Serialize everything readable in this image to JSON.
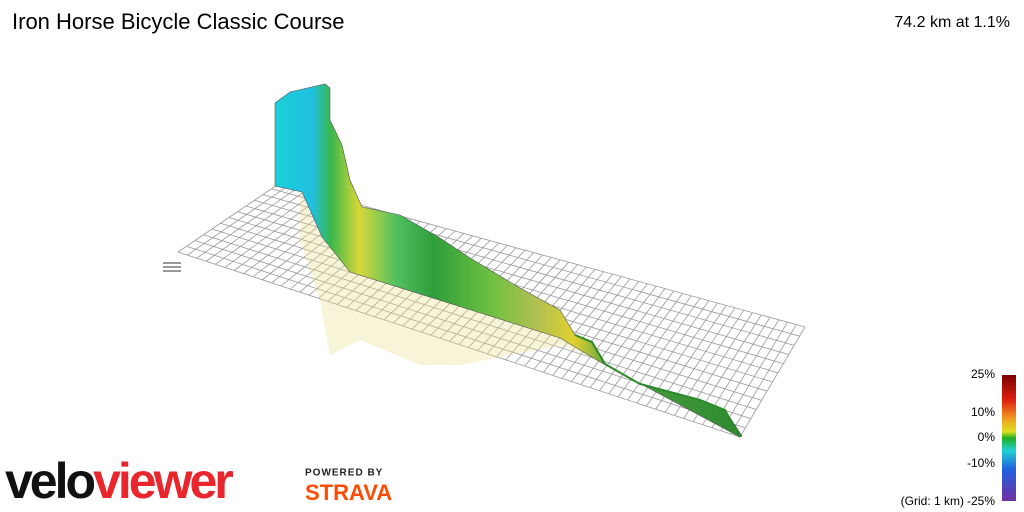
{
  "header": {
    "title": "Iron Horse Bicycle Classic Course",
    "summary": "74.2 km at 1.1%"
  },
  "legend": {
    "labels": [
      "25%",
      "10%",
      "0%",
      "-10%",
      "-25%"
    ],
    "grid_note": "(Grid: 1 km)"
  },
  "branding": {
    "logo_start": "velo",
    "logo_end": "viewer",
    "powered_by": "POWERED BY",
    "partner": "STRAVA"
  }
}
